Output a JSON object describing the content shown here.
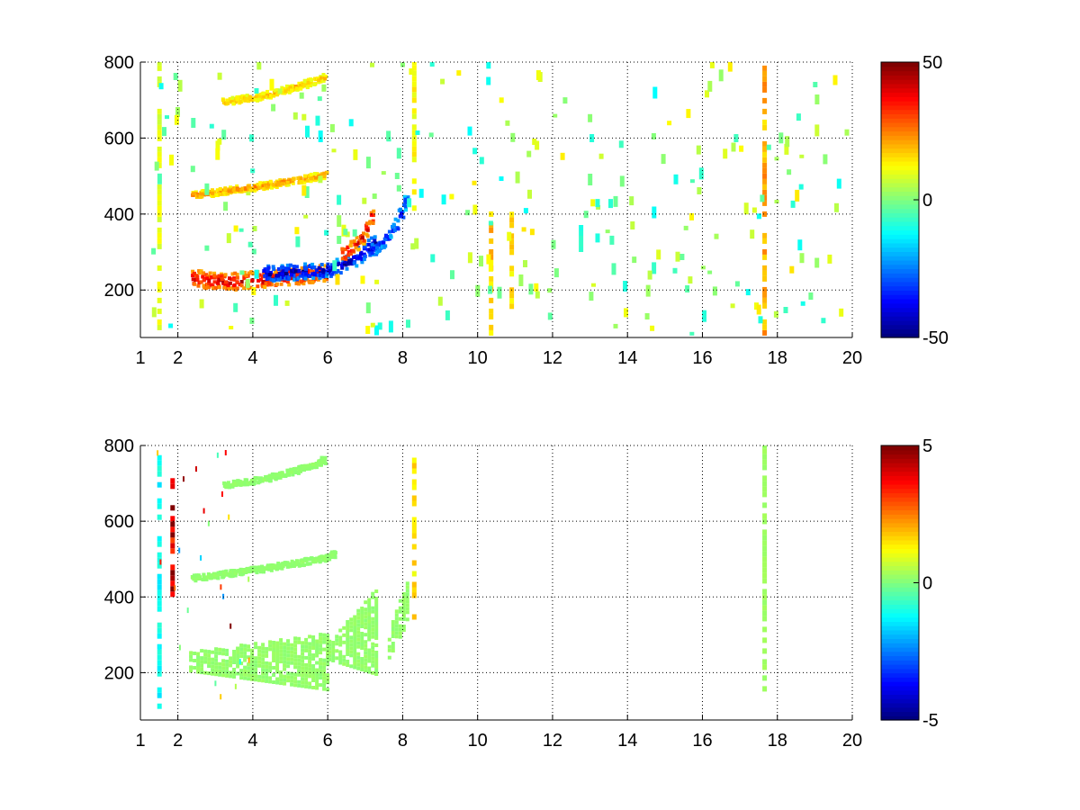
{
  "chart_data": [
    {
      "type": "heatmap",
      "title": "",
      "xlabel": "",
      "ylabel": "",
      "xlim": [
        1,
        20
      ],
      "ylim": [
        75,
        800
      ],
      "x_ticks": [
        1,
        2,
        4,
        6,
        8,
        10,
        12,
        14,
        16,
        18,
        20
      ],
      "y_ticks": [
        200,
        400,
        600,
        800
      ],
      "grid": true,
      "grid_style": "dotted",
      "colormap": "jet",
      "clim": [
        -50,
        50
      ],
      "colorbar_ticks": [
        -50,
        0,
        50
      ],
      "blank_color": "#ffffff",
      "features": [
        {
          "kind": "band",
          "x": [
            2.4,
            3.0,
            3.5,
            4.0,
            4.5,
            5.0,
            5.5,
            5.9
          ],
          "y": [
            225,
            218,
            218,
            222,
            225,
            232,
            236,
            238
          ],
          "value": 38,
          "y_spread": 22
        },
        {
          "kind": "band",
          "x": [
            4.3,
            4.7,
            5.1,
            5.5,
            5.9,
            6.3,
            6.7,
            7.0,
            7.2
          ],
          "y": [
            238,
            240,
            242,
            244,
            248,
            258,
            278,
            300,
            320
          ],
          "value": -42,
          "y_spread": 20
        },
        {
          "kind": "band",
          "x": [
            6.4,
            6.8,
            7.0,
            7.15,
            7.2
          ],
          "y": [
            290,
            320,
            355,
            395,
            425
          ],
          "value": 36,
          "y_spread": 18
        },
        {
          "kind": "band",
          "x": [
            7.2,
            7.5,
            7.8,
            8.0,
            8.15
          ],
          "y": [
            300,
            330,
            365,
            410,
            460
          ],
          "value": -34,
          "y_spread": 18
        },
        {
          "kind": "band",
          "x": [
            2.4,
            3.0,
            3.5,
            4.0,
            4.5,
            5.0,
            5.5,
            5.9
          ],
          "y": [
            445,
            452,
            460,
            466,
            474,
            482,
            490,
            498
          ],
          "value": 22,
          "y_spread": 9
        },
        {
          "kind": "band",
          "x": [
            3.2,
            3.7,
            4.2,
            4.7,
            5.2,
            5.7,
            5.9
          ],
          "y": [
            690,
            697,
            705,
            717,
            732,
            748,
            755
          ],
          "value": 18,
          "y_spread": 9
        },
        {
          "kind": "column",
          "x": 8.25,
          "y": [
            380,
            800
          ],
          "value": 12
        },
        {
          "kind": "column",
          "x": 17.6,
          "y": [
            80,
            800
          ],
          "value": 20
        },
        {
          "kind": "column",
          "x": 1.45,
          "y": [
            80,
            800
          ],
          "value": 10
        },
        {
          "kind": "column",
          "x": 10.3,
          "y": [
            80,
            400
          ],
          "value": 18
        },
        {
          "kind": "column",
          "x": 10.85,
          "y": [
            150,
            400
          ],
          "value": 15
        },
        {
          "kind": "column",
          "x": 12.7,
          "y": [
            300,
            360
          ],
          "value": -8
        }
      ]
    },
    {
      "type": "heatmap",
      "title": "",
      "xlabel": "",
      "ylabel": "",
      "xlim": [
        1,
        20
      ],
      "ylim": [
        75,
        800
      ],
      "x_ticks": [
        1,
        2,
        4,
        6,
        8,
        10,
        12,
        14,
        16,
        18,
        20
      ],
      "y_ticks": [
        200,
        400,
        600,
        800
      ],
      "grid": true,
      "grid_style": "dotted",
      "colormap": "jet",
      "clim": [
        -5,
        5
      ],
      "colorbar_ticks": [
        -5,
        0,
        5
      ],
      "blank_color": "#ffffff",
      "features": [
        {
          "kind": "region",
          "x": [
            2.3,
            6.0
          ],
          "y_low": [
            200,
            150
          ],
          "y_high": [
            250,
            300
          ],
          "value": 0.2
        },
        {
          "kind": "region",
          "x": [
            6.0,
            7.3
          ],
          "y_low": [
            230,
            190
          ],
          "y_high": [
            280,
            420
          ],
          "value": 0.2
        },
        {
          "kind": "region",
          "x": [
            7.6,
            8.1
          ],
          "y_low": [
            235,
            330
          ],
          "y_high": [
            310,
            440
          ],
          "value": 0.2
        },
        {
          "kind": "band",
          "x": [
            2.4,
            3.0,
            3.5,
            4.0,
            4.5,
            5.0,
            5.5,
            5.9,
            6.2
          ],
          "y": [
            445,
            452,
            460,
            466,
            474,
            482,
            490,
            498,
            510
          ],
          "value": 0.2,
          "y_spread": 8
        },
        {
          "kind": "band",
          "x": [
            3.2,
            3.7,
            4.2,
            4.7,
            5.2,
            5.7,
            5.9
          ],
          "y": [
            690,
            697,
            705,
            717,
            732,
            748,
            758
          ],
          "value": 0.2,
          "y_spread": 8
        },
        {
          "kind": "column",
          "x": 8.25,
          "y": [
            340,
            760
          ],
          "value": 1.5
        },
        {
          "kind": "column",
          "x": 17.6,
          "y": [
            150,
            800
          ],
          "value": 0.3
        },
        {
          "kind": "column",
          "x": 1.45,
          "y": [
            90,
            780
          ],
          "value": -1.2
        },
        {
          "kind": "column",
          "x": 1.8,
          "y": [
            400,
            700
          ],
          "value": 4.2
        }
      ]
    }
  ]
}
